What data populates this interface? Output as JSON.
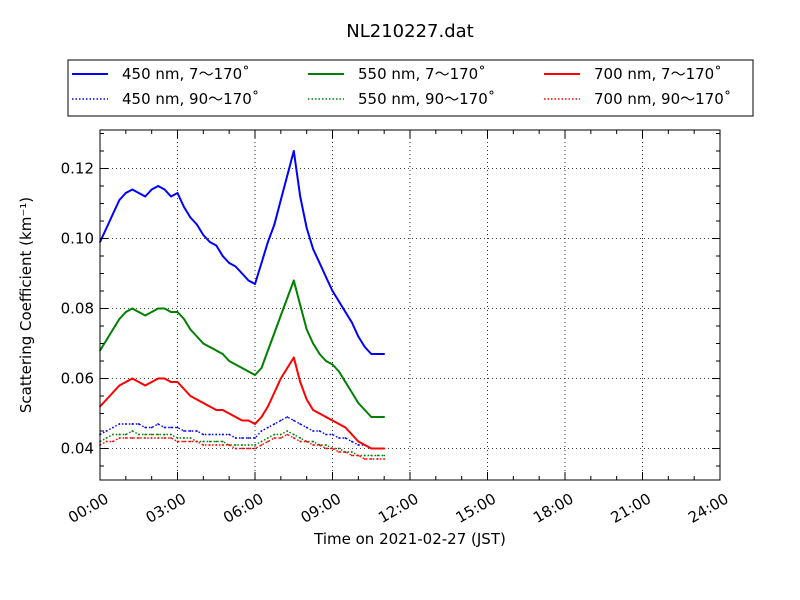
{
  "chart_data": {
    "type": "line",
    "title": "NL210227.dat",
    "xlabel": "Time on 2021-02-27 (JST)",
    "ylabel": "Scattering Coefficient (km⁻¹)",
    "x_unit": "hours",
    "xlim": [
      0,
      24
    ],
    "ylim": [
      0.031,
      0.131
    ],
    "x_ticks": [
      0,
      3,
      6,
      9,
      12,
      15,
      18,
      21,
      24
    ],
    "x_tick_labels": [
      "00:00",
      "03:00",
      "06:00",
      "09:00",
      "12:00",
      "15:00",
      "18:00",
      "21:00",
      "24:00"
    ],
    "y_ticks": [
      0.04,
      0.06,
      0.08,
      0.1,
      0.12
    ],
    "y_tick_labels": [
      "0.04",
      "0.06",
      "0.08",
      "0.10",
      "0.12"
    ],
    "grid": true,
    "legend_position": "top",
    "x": [
      0.0,
      0.25,
      0.5,
      0.75,
      1.0,
      1.25,
      1.5,
      1.75,
      2.0,
      2.25,
      2.5,
      2.75,
      3.0,
      3.25,
      3.5,
      3.75,
      4.0,
      4.25,
      4.5,
      4.75,
      5.0,
      5.25,
      5.5,
      5.75,
      6.0,
      6.25,
      6.5,
      6.75,
      7.0,
      7.25,
      7.5,
      7.75,
      8.0,
      8.25,
      8.5,
      8.75,
      9.0,
      9.25,
      9.5,
      9.75,
      10.0,
      10.25,
      10.5,
      10.75,
      11.0
    ],
    "series": [
      {
        "name": "450 nm, 7～170˚",
        "color": "#0000ff",
        "style": "solid",
        "values": [
          0.099,
          0.103,
          0.107,
          0.111,
          0.113,
          0.114,
          0.113,
          0.112,
          0.114,
          0.115,
          0.114,
          0.112,
          0.113,
          0.109,
          0.106,
          0.104,
          0.101,
          0.099,
          0.098,
          0.095,
          0.093,
          0.092,
          0.09,
          0.088,
          0.087,
          0.093,
          0.099,
          0.104,
          0.111,
          0.118,
          0.125,
          0.112,
          0.103,
          0.097,
          0.093,
          0.089,
          0.085,
          0.082,
          0.079,
          0.076,
          0.072,
          0.069,
          0.067,
          0.067,
          0.067
        ]
      },
      {
        "name": "450 nm, 90～170˚",
        "color": "#0000ff",
        "style": "dotted",
        "values": [
          0.044,
          0.045,
          0.046,
          0.047,
          0.047,
          0.047,
          0.047,
          0.046,
          0.046,
          0.047,
          0.046,
          0.046,
          0.046,
          0.045,
          0.045,
          0.045,
          0.044,
          0.044,
          0.044,
          0.044,
          0.044,
          0.043,
          0.043,
          0.043,
          0.043,
          0.045,
          0.046,
          0.047,
          0.048,
          0.049,
          0.048,
          0.047,
          0.046,
          0.045,
          0.045,
          0.044,
          0.044,
          0.043,
          0.043,
          0.042,
          0.041,
          0.041,
          0.04,
          0.04,
          0.04
        ]
      },
      {
        "name": "550 nm, 7～170˚",
        "color": "#007f00",
        "style": "solid",
        "values": [
          0.068,
          0.071,
          0.074,
          0.077,
          0.079,
          0.08,
          0.079,
          0.078,
          0.079,
          0.08,
          0.08,
          0.079,
          0.079,
          0.077,
          0.074,
          0.072,
          0.07,
          0.069,
          0.068,
          0.067,
          0.065,
          0.064,
          0.063,
          0.062,
          0.061,
          0.063,
          0.068,
          0.073,
          0.078,
          0.083,
          0.088,
          0.081,
          0.074,
          0.07,
          0.067,
          0.065,
          0.064,
          0.062,
          0.059,
          0.056,
          0.053,
          0.051,
          0.049,
          0.049,
          0.049
        ]
      },
      {
        "name": "550 nm, 90～170˚",
        "color": "#007f00",
        "style": "dotted",
        "values": [
          0.042,
          0.043,
          0.044,
          0.044,
          0.044,
          0.045,
          0.044,
          0.044,
          0.044,
          0.044,
          0.044,
          0.044,
          0.043,
          0.043,
          0.043,
          0.042,
          0.042,
          0.042,
          0.042,
          0.042,
          0.041,
          0.041,
          0.041,
          0.041,
          0.041,
          0.042,
          0.043,
          0.044,
          0.044,
          0.045,
          0.044,
          0.043,
          0.042,
          0.042,
          0.041,
          0.041,
          0.04,
          0.04,
          0.039,
          0.039,
          0.038,
          0.038,
          0.038,
          0.038,
          0.038
        ]
      },
      {
        "name": "700 nm, 7～170˚",
        "color": "#ff0000",
        "style": "solid",
        "values": [
          0.052,
          0.054,
          0.056,
          0.058,
          0.059,
          0.06,
          0.059,
          0.058,
          0.059,
          0.06,
          0.06,
          0.059,
          0.059,
          0.057,
          0.055,
          0.054,
          0.053,
          0.052,
          0.051,
          0.051,
          0.05,
          0.049,
          0.048,
          0.048,
          0.047,
          0.049,
          0.052,
          0.056,
          0.06,
          0.063,
          0.066,
          0.059,
          0.054,
          0.051,
          0.05,
          0.049,
          0.048,
          0.047,
          0.046,
          0.044,
          0.042,
          0.041,
          0.04,
          0.04,
          0.04
        ]
      },
      {
        "name": "700 nm, 90～170˚",
        "color": "#ff0000",
        "style": "dotted",
        "values": [
          0.041,
          0.042,
          0.042,
          0.043,
          0.043,
          0.043,
          0.043,
          0.043,
          0.043,
          0.043,
          0.043,
          0.043,
          0.042,
          0.042,
          0.042,
          0.042,
          0.041,
          0.041,
          0.041,
          0.041,
          0.041,
          0.04,
          0.04,
          0.04,
          0.04,
          0.041,
          0.042,
          0.043,
          0.043,
          0.044,
          0.043,
          0.042,
          0.042,
          0.041,
          0.041,
          0.04,
          0.04,
          0.039,
          0.039,
          0.038,
          0.038,
          0.037,
          0.037,
          0.037,
          0.037
        ]
      }
    ]
  }
}
